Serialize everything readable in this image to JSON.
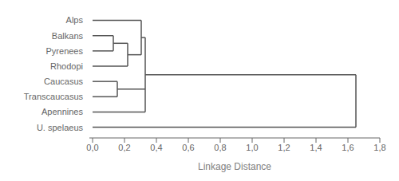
{
  "chart_data": {
    "type": "dendrogram",
    "categories": [
      "Alps",
      "Balkans",
      "Pyrenees",
      "Rhodopi",
      "Caucasus",
      "Transcaucasus",
      "Apennines",
      "U. spelaeus"
    ],
    "merges": [
      {
        "members": [
          "Balkans",
          "Pyrenees"
        ],
        "distance": 0.13
      },
      {
        "members": [
          "Balkans",
          "Pyrenees",
          "Rhodopi"
        ],
        "distance": 0.22
      },
      {
        "members": [
          "Alps",
          "Balkans",
          "Pyrenees",
          "Rhodopi"
        ],
        "distance": 0.305
      },
      {
        "members": [
          "Caucasus",
          "Transcaucasus"
        ],
        "distance": 0.155
      },
      {
        "members": [
          "Alps",
          "Balkans",
          "Pyrenees",
          "Rhodopi",
          "Caucasus",
          "Transcaucasus",
          "Apennines"
        ],
        "distance": 0.33
      },
      {
        "members": [
          "Alps",
          "Balkans",
          "Pyrenees",
          "Rhodopi",
          "Caucasus",
          "Transcaucasus",
          "Apennines",
          "U. spelaeus"
        ],
        "distance": 1.65
      }
    ],
    "xlabel": "Linkage Distance",
    "xlim": [
      -0.02,
      1.8
    ],
    "xticks": [
      {
        "value": 0.0,
        "label": "0,0"
      },
      {
        "value": 0.2,
        "label": "0,2"
      },
      {
        "value": 0.4,
        "label": "0,4"
      },
      {
        "value": 0.6,
        "label": "0,6"
      },
      {
        "value": 0.8,
        "label": "0,8"
      },
      {
        "value": 1.0,
        "label": "1,0"
      },
      {
        "value": 1.2,
        "label": "1,2"
      },
      {
        "value": 1.4,
        "label": "1,4"
      },
      {
        "value": 1.6,
        "label": "1,6"
      },
      {
        "value": 1.8,
        "label": "1,8"
      }
    ],
    "color": "#555555"
  }
}
